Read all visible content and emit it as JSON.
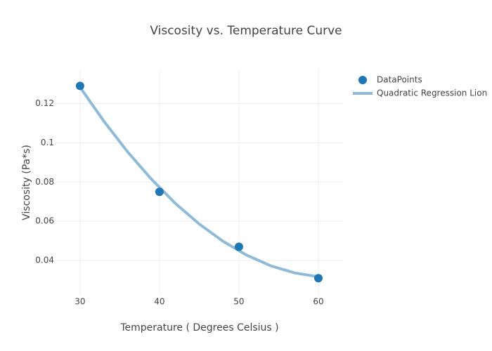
{
  "chart_data": {
    "type": "scatter",
    "title": "Viscosity vs. Temperature Curve",
    "x_label": "Temperature ( Degrees Celsius )",
    "y_label": "Viscosity (Pa*s)",
    "xlim": [
      27,
      63.1
    ],
    "xticks": [
      30,
      40,
      50,
      60
    ],
    "ylim": [
      0.0225,
      0.137
    ],
    "yticks": [
      0.04,
      0.06,
      0.08,
      0.1,
      0.12
    ],
    "grid": true,
    "legend": "right",
    "series": [
      {
        "name": "DataPoints",
        "mode": "markers",
        "color": "#1f77b4",
        "x": [
          30,
          40,
          50,
          60
        ],
        "values": [
          0.129,
          0.075,
          0.047,
          0.031
        ]
      },
      {
        "name": "Quadratic Regression Lion",
        "mode": "lines",
        "color": "#8fbbd9",
        "x": [
          30,
          33,
          36,
          39,
          42,
          45,
          48,
          51,
          54,
          57,
          60
        ],
        "values": [
          0.1283,
          0.111,
          0.0953,
          0.0814,
          0.0691,
          0.0586,
          0.0498,
          0.0427,
          0.0373,
          0.0337,
          0.0317
        ]
      }
    ]
  }
}
